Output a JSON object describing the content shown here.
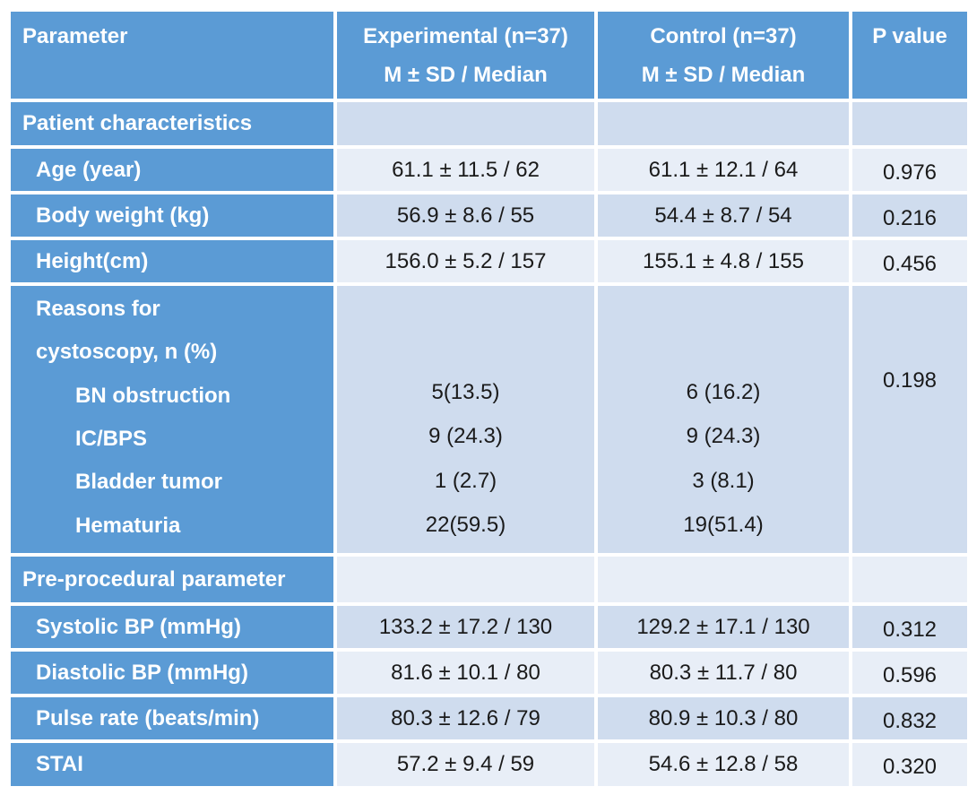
{
  "table": {
    "headers": {
      "parameter": "Parameter",
      "experimental_line1": "Experimental (n=37)",
      "experimental_line2": "M ± SD / Median",
      "control_line1": "Control (n=37)",
      "control_line2": "M ± SD / Median",
      "p_value": "P value"
    },
    "sections": {
      "patient": "Patient characteristics",
      "pre": "Pre-procedural parameter"
    },
    "rows": [
      {
        "label": "Age (year)",
        "exp": "61.1 ± 11.5 / 62",
        "ctrl": "61.1 ± 12.1 / 64",
        "p": "0.976"
      },
      {
        "label": "Body weight (kg)",
        "exp": "56.9 ± 8.6 / 55",
        "ctrl": "54.4 ± 8.7 / 54",
        "p": "0.216"
      },
      {
        "label": "Height(cm)",
        "exp": "156.0 ± 5.2 / 157",
        "ctrl": "155.1 ± 4.8 / 155",
        "p": "0.456"
      }
    ],
    "reasons": {
      "label_line1": "Reasons for",
      "label_line2": "cystoscopy, n (%)",
      "p": "0.198",
      "items": [
        {
          "label": "BN obstruction",
          "exp": "5(13.5)",
          "ctrl": "6 (16.2)"
        },
        {
          "label": "IC/BPS",
          "exp": "9 (24.3)",
          "ctrl": "9 (24.3)"
        },
        {
          "label": "Bladder tumor",
          "exp": "1 (2.7)",
          "ctrl": "3 (8.1)"
        },
        {
          "label": "Hematuria",
          "exp": "22(59.5)",
          "ctrl": "19(51.4)"
        }
      ]
    },
    "pre_rows": [
      {
        "label": "Systolic BP (mmHg)",
        "exp": "133.2 ± 17.2 / 130",
        "ctrl": "129.2 ± 17.1 / 130",
        "p": "0.312"
      },
      {
        "label": "Diastolic BP (mmHg)",
        "exp": "81.6 ± 10.1 / 80",
        "ctrl": "80.3 ± 11.7 / 80",
        "p": "0.596"
      },
      {
        "label": "Pulse rate (beats/min)",
        "exp": "80.3 ± 12.6 / 79",
        "ctrl": "80.9 ± 10.3 / 80",
        "p": "0.832"
      },
      {
        "label": "STAI",
        "exp": "57.2 ± 9.4 / 59",
        "ctrl": "54.6 ± 12.8 / 58",
        "p": "0.320"
      }
    ],
    "colors": {
      "header_blue": "#5b9bd5",
      "row_dark": "#cfdcee",
      "row_light": "#e8eef7"
    }
  }
}
